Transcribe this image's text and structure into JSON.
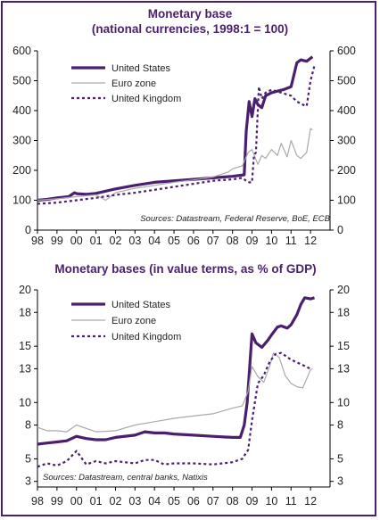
{
  "chart_data": [
    {
      "type": "line",
      "title": "Monetary base",
      "subtitle": "(national currencies, 1998:1 = 100)",
      "source": "Sources: Datastream, Federal Reserve, BoE, ECB",
      "xlabel": "",
      "ylabel": "",
      "x_ticks": [
        "98",
        "99",
        "00",
        "01",
        "02",
        "03",
        "04",
        "05",
        "06",
        "07",
        "08",
        "09",
        "10",
        "11",
        "12"
      ],
      "y_ticks": [
        "0",
        "100",
        "200",
        "300",
        "400",
        "500",
        "600"
      ],
      "y2_ticks": [
        "0",
        "100",
        "200",
        "300",
        "400",
        "500",
        "600"
      ],
      "xlim": [
        1998.0,
        2013.0
      ],
      "ylim": [
        0,
        600
      ],
      "legend_position": "top-left",
      "series": [
        {
          "name": "United States",
          "color": "#4a1f6e",
          "style": "solid-thick",
          "x": [
            1998.0,
            1998.5,
            1999.0,
            1999.6,
            1999.9,
            2000.0,
            2000.5,
            2001.0,
            2002.0,
            2003.0,
            2004.0,
            2005.0,
            2006.0,
            2007.0,
            2008.0,
            2008.6,
            2008.7,
            2008.85,
            2009.0,
            2009.15,
            2009.3,
            2009.5,
            2009.7,
            2010.0,
            2010.3,
            2010.6,
            2011.0,
            2011.3,
            2011.5,
            2011.8,
            2012.0,
            2012.1
          ],
          "y": [
            100,
            103,
            108,
            112,
            125,
            122,
            120,
            123,
            138,
            150,
            160,
            165,
            170,
            175,
            180,
            185,
            330,
            430,
            380,
            440,
            420,
            410,
            450,
            460,
            465,
            470,
            480,
            560,
            570,
            565,
            575,
            580
          ]
        },
        {
          "name": "Euro zone",
          "color": "#aaaaaa",
          "style": "solid-thin",
          "x": [
            1998.0,
            1999.0,
            2000.0,
            2001.0,
            2001.5,
            2002.0,
            2003.0,
            2004.0,
            2005.0,
            2006.0,
            2007.0,
            2007.8,
            2008.0,
            2008.5,
            2008.8,
            2009.0,
            2009.3,
            2009.5,
            2009.7,
            2010.0,
            2010.3,
            2010.5,
            2010.8,
            2011.0,
            2011.3,
            2011.5,
            2011.8,
            2012.0,
            2012.1
          ],
          "y": [
            100,
            105,
            112,
            118,
            100,
            125,
            140,
            150,
            160,
            168,
            178,
            195,
            205,
            215,
            260,
            270,
            220,
            250,
            240,
            270,
            250,
            290,
            245,
            300,
            250,
            240,
            260,
            340,
            335
          ]
        },
        {
          "name": "United Kingdom",
          "color": "#4a1f6e",
          "style": "dotted",
          "x": [
            1998.0,
            1999.0,
            2000.0,
            2001.0,
            2002.0,
            2003.0,
            2004.0,
            2005.0,
            2006.0,
            2007.0,
            2008.0,
            2008.5,
            2008.8,
            2009.0,
            2009.1,
            2009.2,
            2009.35,
            2009.5,
            2009.7,
            2010.0,
            2010.5,
            2011.0,
            2011.3,
            2011.6,
            2011.8,
            2012.0,
            2012.2
          ],
          "y": [
            88,
            92,
            100,
            108,
            118,
            125,
            135,
            145,
            155,
            165,
            170,
            175,
            160,
            160,
            250,
            260,
            480,
            440,
            460,
            470,
            460,
            450,
            430,
            420,
            415,
            500,
            550
          ]
        }
      ]
    },
    {
      "type": "line",
      "title": "Monetary bases (in value terms, as % of GDP)",
      "source": "Sources: Datastream, central banks, Natixis",
      "xlabel": "",
      "ylabel": "",
      "x_ticks": [
        "98",
        "99",
        "00",
        "01",
        "02",
        "03",
        "04",
        "05",
        "06",
        "07",
        "08",
        "09",
        "10",
        "11",
        "12"
      ],
      "y_ticks": [
        "3",
        "5",
        "8",
        "10",
        "13",
        "15",
        "18",
        "20"
      ],
      "y2_ticks": [
        "3",
        "5",
        "8",
        "10",
        "13",
        "15",
        "18",
        "20"
      ],
      "xlim": [
        1998.0,
        2013.0
      ],
      "ylim": [
        2.5,
        20
      ],
      "legend_position": "top-left",
      "series": [
        {
          "name": "United States",
          "color": "#4a1f6e",
          "style": "solid-thick",
          "x": [
            1998.0,
            1998.5,
            1999.0,
            1999.5,
            2000.0,
            2000.5,
            2001.0,
            2001.5,
            2002.0,
            2003.0,
            2003.5,
            2004.0,
            2004.5,
            2005.0,
            2006.0,
            2007.0,
            2008.0,
            2008.4,
            2008.6,
            2008.75,
            2009.0,
            2009.2,
            2009.5,
            2009.8,
            2010.0,
            2010.3,
            2010.5,
            2010.8,
            2011.0,
            2011.3,
            2011.5,
            2011.7,
            2012.0,
            2012.2
          ],
          "y": [
            6.3,
            6.4,
            6.5,
            6.6,
            7.0,
            6.8,
            6.7,
            6.7,
            6.9,
            7.1,
            7.4,
            7.3,
            7.3,
            7.2,
            7.1,
            7.0,
            6.9,
            6.9,
            8.0,
            10.0,
            16.1,
            15.3,
            14.9,
            15.5,
            16.0,
            16.7,
            16.8,
            16.6,
            16.9,
            17.8,
            18.7,
            19.3,
            19.2,
            19.3
          ]
        },
        {
          "name": "Euro zone",
          "color": "#aaaaaa",
          "style": "solid-thin",
          "x": [
            1998.0,
            1998.5,
            1999.0,
            1999.5,
            2000.0,
            2001.0,
            2002.0,
            2003.0,
            2004.0,
            2005.0,
            2006.0,
            2007.0,
            2008.0,
            2008.5,
            2008.8,
            2009.0,
            2009.3,
            2009.6,
            2009.9,
            2010.1,
            2010.4,
            2010.7,
            2011.0,
            2011.3,
            2011.6,
            2012.0,
            2012.1
          ],
          "y": [
            7.8,
            7.5,
            7.5,
            7.4,
            8.0,
            7.4,
            7.5,
            8.0,
            8.3,
            8.6,
            8.8,
            9.0,
            9.5,
            9.7,
            11.0,
            13.2,
            12.3,
            11.8,
            13.2,
            14.4,
            14.0,
            12.4,
            11.7,
            11.4,
            11.3,
            12.9,
            13.0
          ]
        },
        {
          "name": "United Kingdom",
          "color": "#4a1f6e",
          "style": "dotted",
          "x": [
            1998.0,
            1998.5,
            1999.0,
            1999.5,
            2000.0,
            2000.5,
            2001.0,
            2001.5,
            2002.0,
            2003.0,
            2003.5,
            2004.0,
            2004.5,
            2005.0,
            2006.0,
            2007.0,
            2008.0,
            2008.5,
            2008.8,
            2009.0,
            2009.3,
            2009.6,
            2009.9,
            2010.2,
            2010.5,
            2011.0,
            2011.5,
            2012.0
          ],
          "y": [
            4.3,
            4.6,
            4.4,
            4.8,
            5.7,
            4.5,
            4.8,
            4.6,
            4.8,
            4.6,
            4.9,
            4.9,
            4.5,
            4.6,
            4.6,
            4.5,
            4.7,
            5.0,
            5.8,
            8.4,
            11.7,
            12.4,
            13.6,
            14.3,
            14.4,
            13.8,
            13.4,
            13.0
          ]
        }
      ]
    }
  ]
}
